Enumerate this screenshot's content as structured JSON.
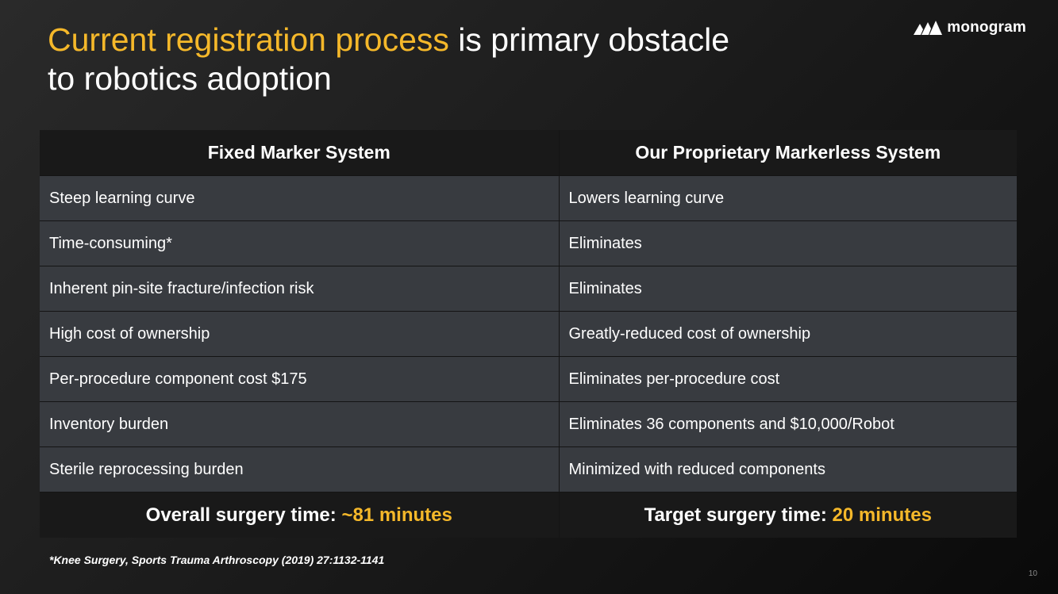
{
  "slide": {
    "title_highlight": "Current registration process",
    "title_rest": " is primary obstacle to robotics adoption",
    "logo_text": "monogram",
    "footnote": "*Knee Surgery, Sports Trauma Arthroscopy (2019) 27:1132-1141",
    "page_number": "10"
  },
  "table": {
    "headers": [
      "Fixed Marker System",
      "Our Proprietary Markerless System"
    ],
    "rows": [
      [
        "Steep learning curve",
        "Lowers learning curve"
      ],
      [
        "Time-consuming*",
        "Eliminates"
      ],
      [
        "Inherent pin-site fracture/infection risk",
        "Eliminates"
      ],
      [
        "High cost of ownership",
        "Greatly-reduced cost of ownership"
      ],
      [
        "Per-procedure component cost $175",
        "Eliminates per-procedure cost"
      ],
      [
        "Inventory burden",
        "Eliminates 36 components and $10,000/Robot"
      ],
      [
        "Sterile reprocessing burden",
        "Minimized with reduced components"
      ]
    ],
    "footer": {
      "left_label": "Overall surgery time: ",
      "left_value": "~81 minutes",
      "right_label": "Target surgery time: ",
      "right_value": "20 minutes"
    }
  },
  "colors": {
    "accent": "#f5b82a",
    "row_background": "#383b40",
    "header_background": "#191919"
  }
}
